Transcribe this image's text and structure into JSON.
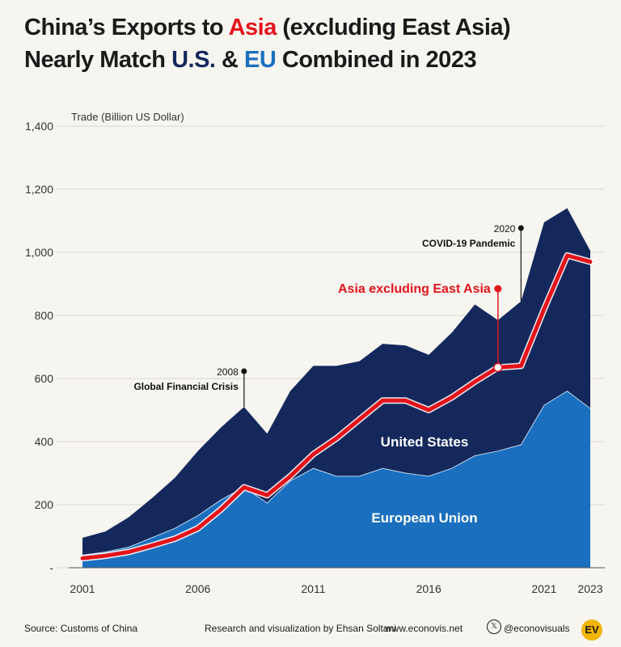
{
  "title": {
    "line1_pre": "China’s Exports to ",
    "line1_asia": "Asia",
    "line1_post": " (excluding East Asia)",
    "line2_pre": "Nearly Match ",
    "line2_us": "U.S.",
    "line2_mid": " & ",
    "line2_eu": "EU",
    "line2_post": " Combined in 2023"
  },
  "colors": {
    "eu": "#1a6fbf",
    "us": "#14285c",
    "asia": "#e4141b",
    "background": "#f6f5f0",
    "grid": "#d9d8d2"
  },
  "chart_data": {
    "type": "area",
    "ylabel": "Trade (Billion US Dollar)",
    "ylim": [
      0,
      1400
    ],
    "yticks": [
      0,
      200,
      400,
      600,
      800,
      1000,
      1200,
      1400
    ],
    "ytick_labels": [
      "-",
      "200",
      "400",
      "600",
      "800",
      "1,000",
      "1,200",
      "1,400"
    ],
    "xticks": [
      "2001",
      "2006",
      "2011",
      "2016",
      "2021",
      "2023"
    ],
    "x": [
      2001,
      2002,
      2003,
      2004,
      2005,
      2006,
      2007,
      2008,
      2009,
      2010,
      2011,
      2012,
      2013,
      2014,
      2015,
      2016,
      2017,
      2018,
      2019,
      2020,
      2021,
      2022,
      2023
    ],
    "series": [
      {
        "name": "European Union",
        "stack": true,
        "values": [
          40,
          50,
          65,
          95,
          125,
          165,
          215,
          255,
          205,
          275,
          315,
          290,
          290,
          315,
          300,
          290,
          315,
          355,
          370,
          390,
          515,
          560,
          505
        ]
      },
      {
        "name": "United States",
        "stack": true,
        "values": [
          55,
          65,
          95,
          125,
          160,
          205,
          230,
          255,
          220,
          285,
          325,
          350,
          365,
          395,
          405,
          385,
          430,
          480,
          415,
          455,
          580,
          580,
          500
        ]
      },
      {
        "name": "Asia excluding East Asia",
        "stack": false,
        "values": [
          30,
          38,
          50,
          70,
          92,
          125,
          185,
          255,
          230,
          290,
          360,
          410,
          470,
          530,
          530,
          500,
          540,
          590,
          635,
          640,
          820,
          990,
          970
        ]
      }
    ],
    "annotations": [
      {
        "year": "2008",
        "text": "Global Financial Crisis"
      },
      {
        "year": "2020",
        "text": "COVID-19 Pandemic"
      }
    ]
  },
  "footer": {
    "source": "Source: Customs of China",
    "credit": "Research and visualization by Ehsan Soltani",
    "site": "www.econovis.net",
    "handle": "@econovisuals",
    "logo": "EV"
  }
}
